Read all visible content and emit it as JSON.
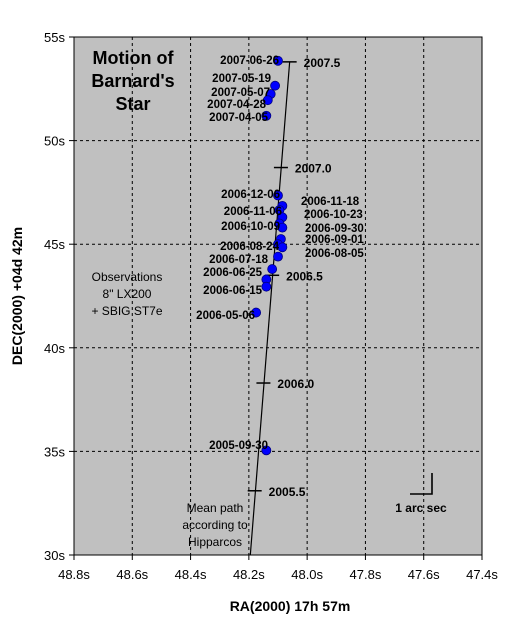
{
  "chart_data": {
    "type": "scatter",
    "title_lines": [
      "Motion of",
      "Barnard's",
      "Star"
    ],
    "xlabel": "RA(2000) 17h 57m",
    "ylabel": "DEC(2000) +04d 42m",
    "xlim": [
      48.8,
      47.4
    ],
    "ylim": [
      30,
      55
    ],
    "x_reversed": true,
    "x_ticks": [
      "48.8s",
      "48.6s",
      "48.4s",
      "48.2s",
      "48.0s",
      "47.8s",
      "47.6s",
      "47.4s"
    ],
    "x_tick_values": [
      48.8,
      48.6,
      48.4,
      48.2,
      48.0,
      47.8,
      47.6,
      47.4
    ],
    "y_ticks": [
      "30s",
      "35s",
      "40s",
      "45s",
      "50s",
      "55s"
    ],
    "y_tick_values": [
      30,
      35,
      40,
      45,
      50,
      55
    ],
    "grid": true,
    "plot_bg_color": "#c0c0c0",
    "point_color": "#0000ff",
    "observations": [
      {
        "date": "2007-06-26",
        "ra": 48.1,
        "dec": 53.85
      },
      {
        "date": "2007-05-19",
        "ra": 48.11,
        "dec": 52.65
      },
      {
        "date": "2007-05-07",
        "ra": 48.125,
        "dec": 52.25
      },
      {
        "date": "2007-04-28",
        "ra": 48.135,
        "dec": 51.95
      },
      {
        "date": "2007-04-05",
        "ra": 48.14,
        "dec": 51.2
      },
      {
        "date": "2006-12-06",
        "ra": 48.1,
        "dec": 47.35
      },
      {
        "date": "2006-11-18",
        "ra": 48.085,
        "dec": 46.85
      },
      {
        "date": "2006-11-06",
        "ra": 48.095,
        "dec": 46.65
      },
      {
        "date": "2006-10-23",
        "ra": 48.085,
        "dec": 46.3
      },
      {
        "date": "2006-10-09",
        "ra": 48.095,
        "dec": 46.0
      },
      {
        "date": "2006-09-30",
        "ra": 48.085,
        "dec": 45.8
      },
      {
        "date": "2006-09-01",
        "ra": 48.09,
        "dec": 45.25
      },
      {
        "date": "2006-08-24",
        "ra": 48.1,
        "dec": 45.0
      },
      {
        "date": "2006-08-05",
        "ra": 48.085,
        "dec": 44.85
      },
      {
        "date": "2006-07-18",
        "ra": 48.1,
        "dec": 44.4
      },
      {
        "date": "2006-06-25",
        "ra": 48.12,
        "dec": 43.8
      },
      {
        "date": "2006-06-15",
        "ra": 48.14,
        "dec": 43.3
      },
      {
        "date": "2006-06-15",
        "ra": 48.14,
        "dec": 42.95
      },
      {
        "date": "2006-05-06",
        "ra": 48.175,
        "dec": 41.7
      },
      {
        "date": "2005-09-30",
        "ra": 48.14,
        "dec": 35.05
      }
    ],
    "visible_date_labels": [
      "2007-06-26",
      "2007-05-19",
      "2007-05-07",
      "2007-04-28",
      "2007-04-05",
      "2006-12-06",
      "2006-11-18",
      "2006-11-06",
      "2006-10-23",
      "2006-10-09",
      "2006-09-30",
      "2006-09-01",
      "2006-08-24",
      "2006-08-05",
      "2006-07-18",
      "2006-06-25",
      "2006-06-15",
      "2006-05-06",
      "2005-09-30"
    ],
    "mean_path": {
      "label_lines": [
        "Mean path",
        "according to",
        "Hipparcos"
      ],
      "start": {
        "ra": 48.195,
        "dec": 30.0
      },
      "end": {
        "ra": 48.06,
        "dec": 53.8
      },
      "epochs": [
        {
          "label": "2005.5",
          "ra": 48.18,
          "dec": 33.1
        },
        {
          "label": "2006.0",
          "ra": 48.15,
          "dec": 38.3
        },
        {
          "label": "2006.5",
          "ra": 48.12,
          "dec": 43.5
        },
        {
          "label": "2007.0",
          "ra": 48.09,
          "dec": 48.7
        },
        {
          "label": "2007.5",
          "ra": 48.06,
          "dec": 53.8
        }
      ]
    },
    "note_lines": [
      "Observations",
      "8\" LX200",
      "+ SBIG ST7e"
    ],
    "scale_bar_label": "1 arc sec"
  }
}
